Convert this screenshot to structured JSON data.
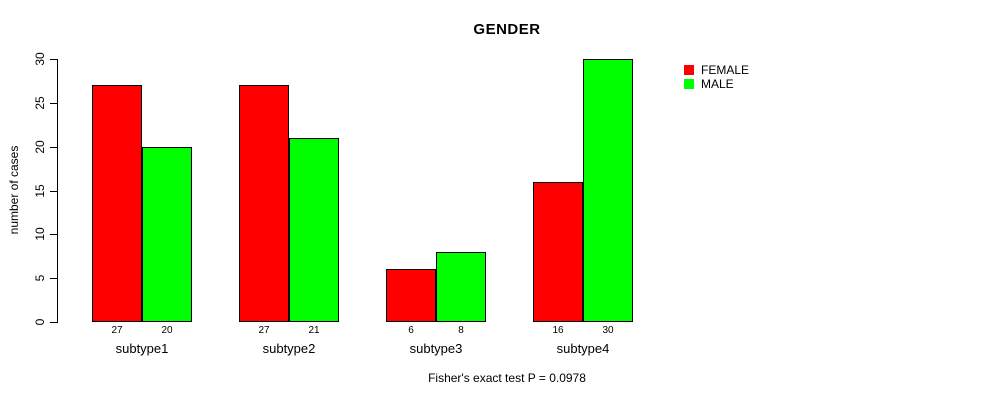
{
  "chart_data": {
    "type": "bar",
    "title": "GENDER",
    "xlabel": "",
    "ylabel": "number of cases",
    "categories": [
      "subtype1",
      "subtype2",
      "subtype3",
      "subtype4"
    ],
    "series": [
      {
        "name": "FEMALE",
        "color": "#FF0000",
        "values": [
          27,
          27,
          6,
          16
        ]
      },
      {
        "name": "MALE",
        "color": "#00FF00",
        "values": [
          20,
          21,
          8,
          30
        ]
      }
    ],
    "ylim": [
      0,
      30
    ],
    "yticks": [
      0,
      5,
      10,
      15,
      20,
      25,
      30
    ],
    "grid": false,
    "bar_border_color": "#000000",
    "value_labels_shown": true,
    "legend_position": "right",
    "legend_entries": [
      "FEMALE",
      "MALE"
    ],
    "caption": "Fisher's exact test P = 0.0978"
  }
}
